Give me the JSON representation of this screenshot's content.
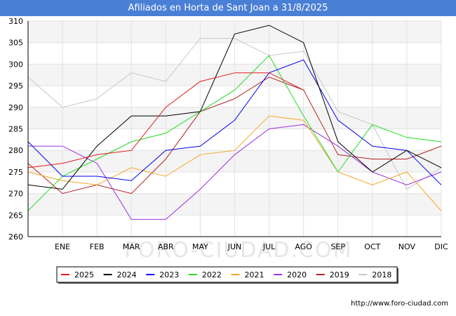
{
  "chart_data": {
    "type": "line",
    "title": "Afiliados en Horta de Sant Joan a 31/8/2025",
    "categories": [
      "",
      "ENE",
      "FEB",
      "MAR",
      "ABR",
      "MAY",
      "JUN",
      "JUL",
      "AGO",
      "SEP",
      "OCT",
      "NOV",
      "DIC"
    ],
    "ylim": [
      260,
      310
    ],
    "yticks": [
      260,
      265,
      270,
      275,
      280,
      285,
      290,
      295,
      300,
      305,
      310
    ],
    "grid": true,
    "legend_position": "bottom",
    "series": [
      {
        "name": "2025",
        "color": "#e31a1c",
        "values": [
          276,
          277,
          279,
          280,
          290,
          296,
          298,
          298,
          294,
          null,
          null,
          null,
          null
        ]
      },
      {
        "name": "2024",
        "color": "#000000",
        "values": [
          272,
          271,
          281,
          288,
          288,
          289,
          307,
          309,
          305,
          282,
          275,
          280,
          276
        ]
      },
      {
        "name": "2023",
        "color": "#0000ee",
        "values": [
          282,
          274,
          274,
          273,
          280,
          281,
          287,
          298,
          301,
          287,
          281,
          280,
          272
        ]
      },
      {
        "name": "2022",
        "color": "#22dd22",
        "values": [
          266,
          274,
          278,
          282,
          284,
          289,
          294,
          302,
          288,
          275,
          286,
          283,
          282
        ]
      },
      {
        "name": "2021",
        "color": "#f5a623",
        "values": [
          275,
          273,
          272,
          276,
          274,
          279,
          280,
          288,
          287,
          275,
          272,
          275,
          266
        ]
      },
      {
        "name": "2020",
        "color": "#9b30e0",
        "values": [
          281,
          281,
          277,
          264,
          264,
          271,
          279,
          285,
          286,
          281,
          275,
          272,
          275
        ]
      },
      {
        "name": "2019",
        "color": "#b22222",
        "values": [
          277,
          270,
          272,
          270,
          278,
          289,
          292,
          297,
          294,
          279,
          278,
          278,
          281
        ]
      },
      {
        "name": "2018",
        "color": "#c8c8c8",
        "values": [
          297,
          290,
          292,
          298,
          296,
          306,
          306,
          302,
          303,
          289,
          286,
          271,
          276
        ]
      }
    ],
    "watermark": "FORO-CIUDAD.COM"
  },
  "footer": {
    "url": "http://www.foro-ciudad.com"
  }
}
